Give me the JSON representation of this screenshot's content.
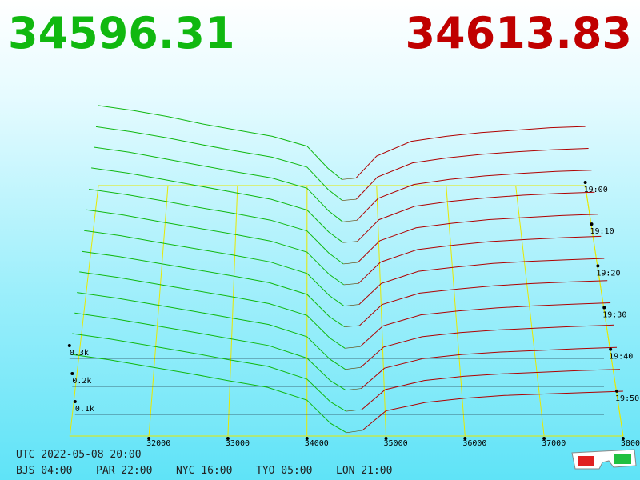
{
  "header": {
    "bid": "34596.31",
    "ask": "34613.83"
  },
  "depth": {
    "bid_prices": [
      34500,
      34300,
      34000,
      33500,
      33000,
      32500,
      32000,
      31500,
      31000
    ],
    "ask_prices": [
      34700,
      35000,
      35500,
      36000,
      36500,
      37000,
      37500,
      38000
    ],
    "slices": [
      {
        "minutes_before": 60,
        "bids": [
          25,
          70,
          160,
          200,
          225,
          250,
          280,
          305,
          325
        ],
        "asks": [
          30,
          120,
          180,
          200,
          215,
          225,
          235,
          240
        ]
      },
      {
        "minutes_before": 55,
        "bids": [
          24,
          68,
          158,
          198,
          222,
          248,
          276,
          300,
          320
        ],
        "asks": [
          29,
          118,
          175,
          195,
          210,
          220,
          228,
          233
        ]
      },
      {
        "minutes_before": 50,
        "bids": [
          22,
          66,
          155,
          196,
          220,
          246,
          272,
          298,
          318
        ],
        "asks": [
          28,
          115,
          170,
          190,
          204,
          214,
          222,
          227
        ]
      },
      {
        "minutes_before": 45,
        "bids": [
          22,
          64,
          150,
          192,
          218,
          244,
          270,
          295,
          315
        ],
        "asks": [
          27,
          112,
          165,
          184,
          198,
          208,
          215,
          220
        ]
      },
      {
        "minutes_before": 40,
        "bids": [
          20,
          62,
          148,
          190,
          216,
          240,
          266,
          290,
          310
        ],
        "asks": [
          26,
          110,
          160,
          178,
          192,
          200,
          208,
          213
        ]
      },
      {
        "minutes_before": 35,
        "bids": [
          20,
          60,
          145,
          188,
          214,
          238,
          262,
          288,
          308
        ],
        "asks": [
          25,
          107,
          155,
          172,
          186,
          194,
          201,
          206
        ]
      },
      {
        "minutes_before": 30,
        "bids": [
          18,
          58,
          142,
          186,
          212,
          236,
          260,
          285,
          305
        ],
        "asks": [
          24,
          104,
          150,
          166,
          180,
          188,
          194,
          199
        ]
      },
      {
        "minutes_before": 25,
        "bids": [
          18,
          56,
          140,
          184,
          210,
          234,
          258,
          282,
          302
        ],
        "asks": [
          23,
          102,
          145,
          160,
          173,
          181,
          187,
          192
        ]
      },
      {
        "minutes_before": 20,
        "bids": [
          16,
          54,
          138,
          182,
          208,
          232,
          256,
          280,
          300
        ],
        "asks": [
          22,
          99,
          140,
          155,
          166,
          174,
          180,
          185
        ]
      },
      {
        "minutes_before": 15,
        "bids": [
          15,
          52,
          135,
          180,
          205,
          230,
          254,
          278,
          298
        ],
        "asks": [
          22,
          97,
          135,
          150,
          160,
          167,
          173,
          178
        ]
      },
      {
        "minutes_before": 10,
        "bids": [
          15,
          50,
          132,
          178,
          203,
          228,
          252,
          276,
          296
        ],
        "asks": [
          21,
          95,
          130,
          145,
          154,
          160,
          166,
          171
        ]
      },
      {
        "minutes_before": 5,
        "bids": [
          14,
          48,
          130,
          176,
          200,
          226,
          250,
          274,
          294
        ],
        "asks": [
          20,
          92,
          125,
          140,
          149,
          155,
          161,
          165
        ]
      },
      {
        "minutes_before": 0,
        "bids": [
          12,
          45,
          128,
          174,
          198,
          224,
          248,
          272,
          292
        ],
        "asks": [
          20,
          90,
          120,
          135,
          145,
          150,
          155,
          160
        ]
      }
    ],
    "bid_color": "#10b810",
    "ask_color": "#b00000",
    "price_ticks": [
      32000,
      33000,
      34000,
      35000,
      36000,
      37000,
      38000
    ],
    "size_ticks": [
      {
        "value": 100,
        "label": "0.1k"
      },
      {
        "value": 200,
        "label": "0.2k"
      },
      {
        "value": 300,
        "label": "0.3k"
      }
    ],
    "time_ticks": [
      {
        "value": 60,
        "label": "19:00"
      },
      {
        "value": 50,
        "label": "19:10"
      },
      {
        "value": 40,
        "label": "19:20"
      },
      {
        "value": 30,
        "label": "19:30"
      },
      {
        "value": 20,
        "label": "19:40"
      },
      {
        "value": 10,
        "label": "19:50"
      }
    ],
    "time_span": 60
  },
  "clocks": {
    "utc": "UTC 2022-05-08 20:00",
    "cities": [
      "BJS 04:00",
      "PAR 22:00",
      "NYC 16:00",
      "TYO 05:00",
      "LON 21:00"
    ]
  }
}
